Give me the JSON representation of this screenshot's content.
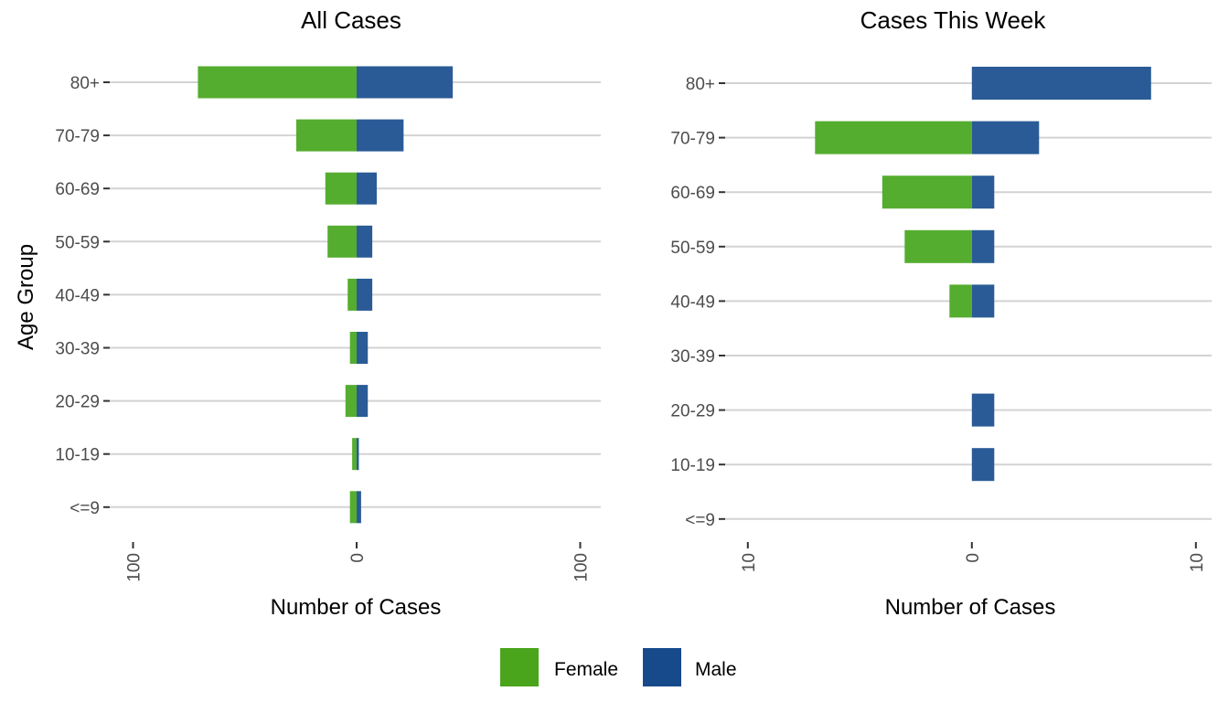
{
  "chart_data": [
    {
      "type": "bar",
      "orientation": "horizontal-diverging",
      "title": "All Cases",
      "xlabel": "Number of Cases",
      "ylabel": "Age Group",
      "categories": [
        "80+",
        "70-79",
        "60-69",
        "50-59",
        "40-49",
        "30-39",
        "20-29",
        "10-19",
        "<=9"
      ],
      "series": [
        {
          "name": "Female",
          "direction": "left",
          "values": [
            71,
            27,
            14,
            13,
            4,
            3,
            5,
            2,
            3
          ]
        },
        {
          "name": "Male",
          "direction": "right",
          "values": [
            43,
            21,
            9,
            7,
            7,
            5,
            5,
            1,
            2
          ]
        }
      ],
      "xlim": [
        -110,
        110
      ],
      "xticks": [
        -100,
        0,
        100
      ],
      "xtick_labels": [
        "100",
        "0",
        "100"
      ],
      "grid": true
    },
    {
      "type": "bar",
      "orientation": "horizontal-diverging",
      "title": "Cases This Week",
      "xlabel": "Number of Cases",
      "ylabel": "",
      "categories": [
        "80+",
        "70-79",
        "60-69",
        "50-59",
        "40-49",
        "30-39",
        "20-29",
        "10-19",
        "<=9"
      ],
      "series": [
        {
          "name": "Female",
          "direction": "left",
          "values": [
            0,
            7,
            4,
            3,
            1,
            0,
            0,
            0,
            0
          ]
        },
        {
          "name": "Male",
          "direction": "right",
          "values": [
            8,
            3,
            1,
            1,
            1,
            0,
            1,
            1,
            0
          ]
        }
      ],
      "xlim": [
        -11,
        11
      ],
      "xticks": [
        -10,
        0,
        10
      ],
      "xtick_labels": [
        "10",
        "0",
        "10"
      ],
      "grid": true
    }
  ],
  "legend": {
    "position": "bottom",
    "items": [
      {
        "label": "Female",
        "color": "#4aa41c"
      },
      {
        "label": "Male",
        "color": "#174a8b"
      }
    ]
  },
  "colors": {
    "female_bar": "#55ad2f",
    "male_bar": "#2a5b96"
  }
}
